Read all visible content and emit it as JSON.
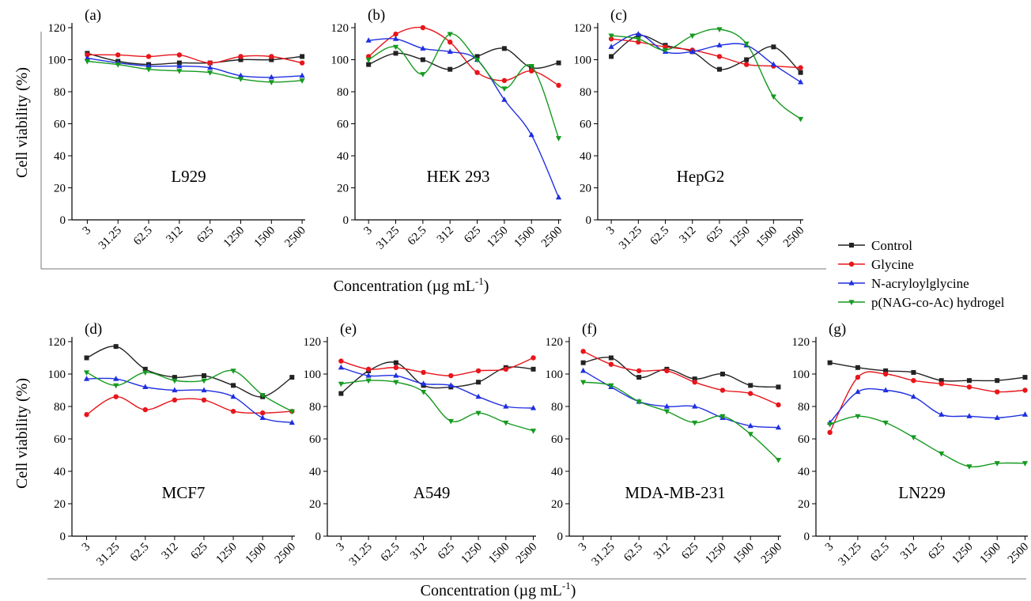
{
  "figure": {
    "ylabel": "Cell viability (%)",
    "xlabel": "Concentration (µg mL",
    "xlabel_sup": "-1",
    "xlabel_end": ")"
  },
  "legend": {
    "placement": "right",
    "items": [
      {
        "label": "Control",
        "color": "#222222",
        "marker": "square"
      },
      {
        "label": "Glycine",
        "color": "#e8151b",
        "marker": "circle"
      },
      {
        "label": "N-acryloylglycine",
        "color": "#1f2fe0",
        "marker": "triangle-up"
      },
      {
        "label": "p(NAG-co-Ac) hydrogel",
        "color": "#159a1f",
        "marker": "triangle-down"
      }
    ]
  },
  "chart_data": [
    {
      "type": "line",
      "panel": "(a)",
      "label": "L929",
      "ylim": [
        0,
        120
      ],
      "yticks": [
        0,
        20,
        40,
        60,
        80,
        100,
        120
      ],
      "categories": [
        "3",
        "31.25",
        "62.5",
        "312",
        "625",
        "1250",
        "1500",
        "2500"
      ],
      "series": [
        {
          "name": "Control",
          "values": [
            104,
            99,
            97,
            98,
            98,
            100,
            100,
            102
          ]
        },
        {
          "name": "Glycine",
          "values": [
            103,
            103,
            102,
            103,
            98,
            102,
            102,
            98
          ]
        },
        {
          "name": "N-acryloylglycine",
          "values": [
            101,
            98,
            96,
            96,
            95,
            90,
            89,
            90
          ]
        },
        {
          "name": "p(NAG-co-Ac) hydrogel",
          "values": [
            99,
            97,
            94,
            93,
            92,
            88,
            86,
            87
          ]
        }
      ]
    },
    {
      "type": "line",
      "panel": "(b)",
      "label": "HEK 293",
      "ylim": [
        0,
        120
      ],
      "yticks": [
        0,
        20,
        40,
        60,
        80,
        100,
        120
      ],
      "categories": [
        "3",
        "31.25",
        "62.5",
        "312",
        "625",
        "1250",
        "1500",
        "2500"
      ],
      "series": [
        {
          "name": "Control",
          "values": [
            97,
            104,
            100,
            94,
            102,
            107,
            95,
            98
          ]
        },
        {
          "name": "Glycine",
          "values": [
            102,
            116,
            120,
            111,
            92,
            87,
            93,
            84
          ]
        },
        {
          "name": "N-acryloylglycine",
          "values": [
            112,
            113,
            107,
            105,
            100,
            75,
            53,
            14
          ]
        },
        {
          "name": "p(NAG-co-Ac) hydrogel",
          "values": [
            100,
            108,
            91,
            116,
            100,
            82,
            96,
            51
          ]
        }
      ]
    },
    {
      "type": "line",
      "panel": "(c)",
      "label": "HepG2",
      "ylim": [
        0,
        120
      ],
      "yticks": [
        0,
        20,
        40,
        60,
        80,
        100,
        120
      ],
      "categories": [
        "3",
        "31.25",
        "62.5",
        "312",
        "625",
        "1250",
        "1500",
        "2500"
      ],
      "series": [
        {
          "name": "Control",
          "values": [
            102,
            115,
            109,
            105,
            94,
            100,
            108,
            92
          ]
        },
        {
          "name": "Glycine",
          "values": [
            113,
            111,
            108,
            106,
            102,
            97,
            96,
            95
          ]
        },
        {
          "name": "N-acryloylglycine",
          "values": [
            108,
            116,
            105,
            105,
            109,
            109,
            97,
            86
          ]
        },
        {
          "name": "p(NAG-co-Ac) hydrogel",
          "values": [
            115,
            113,
            106,
            115,
            119,
            110,
            77,
            63
          ]
        }
      ]
    },
    {
      "type": "line",
      "panel": "(d)",
      "label": "MCF7",
      "ylim": [
        0,
        120
      ],
      "yticks": [
        0,
        20,
        40,
        60,
        80,
        100,
        120
      ],
      "categories": [
        "3",
        "31.25",
        "62.5",
        "312",
        "625",
        "1250",
        "1500",
        "2500"
      ],
      "series": [
        {
          "name": "Control",
          "values": [
            110,
            117,
            103,
            98,
            99,
            93,
            86,
            98
          ]
        },
        {
          "name": "Glycine",
          "values": [
            75,
            86,
            78,
            84,
            84,
            77,
            76,
            77
          ]
        },
        {
          "name": "N-acryloylglycine",
          "values": [
            97,
            97,
            92,
            90,
            90,
            86,
            73,
            70
          ]
        },
        {
          "name": "p(NAG-co-Ac) hydrogel",
          "values": [
            101,
            93,
            101,
            96,
            96,
            102,
            87,
            77
          ]
        }
      ]
    },
    {
      "type": "line",
      "panel": "(e)",
      "label": "A549",
      "ylim": [
        0,
        120
      ],
      "yticks": [
        0,
        20,
        40,
        60,
        80,
        100,
        120
      ],
      "categories": [
        "3",
        "31.25",
        "62.5",
        "312",
        "625",
        "1250",
        "1500",
        "2500"
      ],
      "series": [
        {
          "name": "Control",
          "values": [
            88,
            102,
            107,
            93,
            92,
            95,
            104,
            103
          ]
        },
        {
          "name": "Glycine",
          "values": [
            108,
            103,
            104,
            101,
            99,
            102,
            103,
            110
          ]
        },
        {
          "name": "N-acryloylglycine",
          "values": [
            104,
            99,
            99,
            94,
            93,
            86,
            80,
            79
          ]
        },
        {
          "name": "p(NAG-co-Ac) hydrogel",
          "values": [
            94,
            96,
            95,
            89,
            71,
            76,
            70,
            65
          ]
        }
      ]
    },
    {
      "type": "line",
      "panel": "(f)",
      "label": "MDA-MB-231",
      "ylim": [
        0,
        120
      ],
      "yticks": [
        0,
        20,
        40,
        60,
        80,
        100,
        120
      ],
      "categories": [
        "3",
        "31.25",
        "62.5",
        "312",
        "625",
        "1250",
        "1500",
        "2500"
      ],
      "series": [
        {
          "name": "Control",
          "values": [
            107,
            110,
            98,
            103,
            97,
            100,
            93,
            92
          ]
        },
        {
          "name": "Glycine",
          "values": [
            114,
            106,
            102,
            102,
            95,
            90,
            88,
            81
          ]
        },
        {
          "name": "N-acryloylglycine",
          "values": [
            102,
            92,
            83,
            80,
            80,
            73,
            68,
            67
          ]
        },
        {
          "name": "p(NAG-co-Ac) hydrogel",
          "values": [
            95,
            93,
            83,
            77,
            70,
            74,
            63,
            47
          ]
        }
      ]
    },
    {
      "type": "line",
      "panel": "(g)",
      "label": "LN229",
      "ylim": [
        0,
        120
      ],
      "yticks": [
        0,
        20,
        40,
        60,
        80,
        100,
        120
      ],
      "categories": [
        "3",
        "31.25",
        "62.5",
        "312",
        "625",
        "1250",
        "1500",
        "2500"
      ],
      "series": [
        {
          "name": "Control",
          "values": [
            107,
            104,
            102,
            101,
            96,
            96,
            96,
            98
          ]
        },
        {
          "name": "Glycine",
          "values": [
            64,
            98,
            100,
            96,
            94,
            92,
            89,
            90
          ]
        },
        {
          "name": "N-acryloylglycine",
          "values": [
            70,
            89,
            90,
            86,
            75,
            74,
            73,
            75
          ]
        },
        {
          "name": "p(NAG-co-Ac) hydrogel",
          "values": [
            69,
            74,
            70,
            61,
            51,
            43,
            45,
            45
          ]
        }
      ]
    }
  ]
}
